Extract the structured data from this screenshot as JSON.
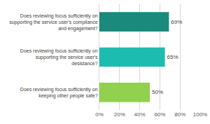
{
  "chart_data": {
    "type": "bar",
    "orientation": "horizontal",
    "categories": [
      "Does reviewing focus sufficiently on supporting the service user's compliance and engagement?",
      "Does reviewing focus sufficiently on supporting the service user's desistance?",
      "Does reviewing focus sufficiently on keeping other people safe?"
    ],
    "values": [
      69,
      65,
      50
    ],
    "value_labels": [
      "69%",
      "65%",
      "50%"
    ],
    "data_labels": true,
    "colors": [
      "#1a8a7c",
      "#1dbcb0",
      "#92d050"
    ],
    "xlim": [
      0,
      100
    ],
    "xticks": [
      {
        "value": 0,
        "label": "0%"
      },
      {
        "value": 20,
        "label": "20%"
      },
      {
        "value": 40,
        "label": "40%"
      },
      {
        "value": 60,
        "label": "60%"
      },
      {
        "value": 80,
        "label": "80%"
      },
      {
        "value": 100,
        "label": "100%"
      }
    ],
    "grid": true
  }
}
